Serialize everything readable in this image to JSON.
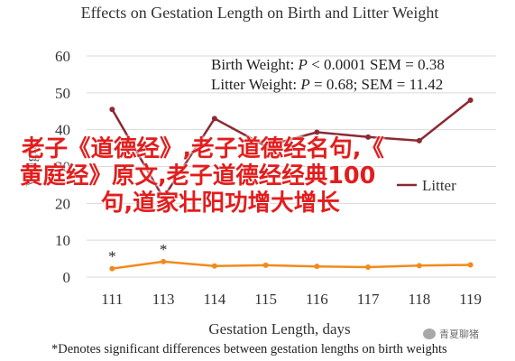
{
  "chart_data": {
    "type": "line",
    "title": "Effects on Gestation Length on Birth and Litter Weight",
    "xlabel": "Gestation Length, days",
    "ylabel": "Weight",
    "ylim": [
      0,
      60
    ],
    "yticks": [
      0,
      10,
      20,
      30,
      40,
      50,
      60
    ],
    "categories": [
      "111",
      "113",
      "114",
      "115",
      "116",
      "117",
      "118",
      "119"
    ],
    "grid": true,
    "legend_position": "center-right",
    "series": [
      {
        "name": "Litter",
        "color": "#8b2a33",
        "values": [
          45.5,
          21.5,
          43.0,
          35.5,
          39.3,
          38.0,
          37.0,
          48.0
        ]
      },
      {
        "name": "Birth",
        "color": "#f28a1c",
        "values": [
          2.3,
          4.2,
          3.0,
          3.2,
          2.9,
          2.7,
          3.1,
          3.3
        ]
      }
    ],
    "star_markers": [
      {
        "category": "111",
        "label": "*"
      },
      {
        "category": "113",
        "label": "*"
      }
    ],
    "annotations": [
      {
        "parts": [
          {
            "t": "Birth Weight: "
          },
          {
            "t": "P",
            "i": true
          },
          {
            "t": " < 0.0001 SEM = 0.38"
          }
        ]
      },
      {
        "parts": [
          {
            "t": "Litter Weight: "
          },
          {
            "t": "P",
            "i": true
          },
          {
            "t": " = 0.68; SEM = 11.42"
          }
        ]
      }
    ],
    "footnote": "*Denotes significant differences between gestation lengths on birth weights"
  },
  "overlay": {
    "lines": [
      "老子《道德经》,老子道德经名句,《",
      "黄庭经》原文,老子道德经经典100",
      "句,道家壮阳功增大增长"
    ],
    "color": "#e31d1d"
  },
  "watermark": {
    "text": "青夏聊猪"
  }
}
